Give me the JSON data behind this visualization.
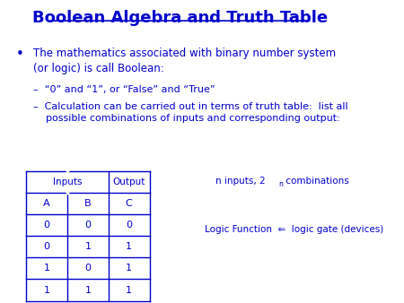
{
  "title": "Boolean Algebra and Truth Table",
  "title_color": "#0000CC",
  "bg_color": "#FFFFFF",
  "text_color": "#0000CC",
  "bullet_text": "The mathematics associated with binary number system\n(or logic) is call Boolean:",
  "sub1": "–  “0” and “1”, or “False” and “True”",
  "sub2": "–  Calculation can be carried out in terms of truth table:  list all\n    possible combinations of inputs and corresponding output:",
  "col_headers": [
    "A",
    "B",
    "C"
  ],
  "table_data": [
    [
      "0",
      "0",
      "0"
    ],
    [
      "0",
      "1",
      "1"
    ],
    [
      "1",
      "0",
      "1"
    ],
    [
      "1",
      "1",
      "1"
    ]
  ],
  "note2": "Logic Function  ⇐  logic gate (devices)"
}
